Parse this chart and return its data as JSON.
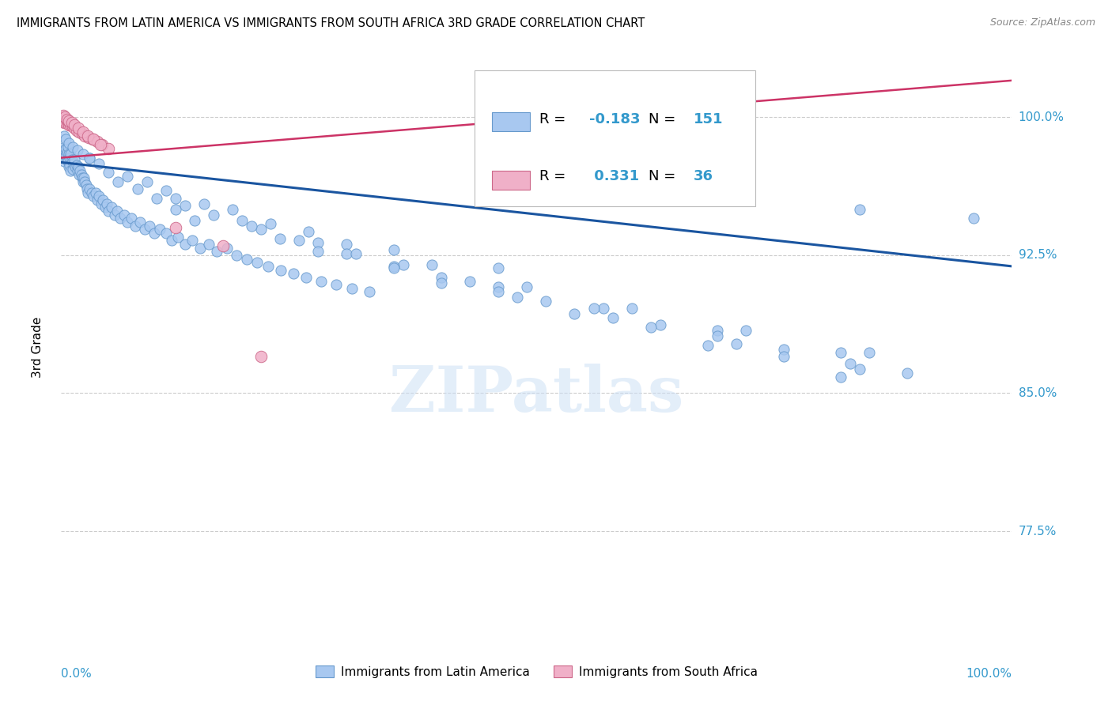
{
  "title": "IMMIGRANTS FROM LATIN AMERICA VS IMMIGRANTS FROM SOUTH AFRICA 3RD GRADE CORRELATION CHART",
  "source": "Source: ZipAtlas.com",
  "ylabel": "3rd Grade",
  "r_blue": -0.183,
  "n_blue": 151,
  "r_pink": 0.331,
  "n_pink": 36,
  "blue_face": "#a8c8f0",
  "pink_face": "#f0b0c8",
  "blue_edge": "#6699cc",
  "pink_edge": "#cc6688",
  "blue_line_color": "#1a55a0",
  "pink_line_color": "#cc3366",
  "label_color": "#3399cc",
  "grid_color": "#cccccc",
  "watermark_color": "#ddeeff",
  "y_tick_values": [
    0.775,
    0.85,
    0.925,
    1.0
  ],
  "y_tick_labels": [
    "77.5%",
    "85.0%",
    "92.5%",
    "100.0%"
  ],
  "xlim": [
    0.0,
    1.0
  ],
  "ylim": [
    0.715,
    1.035
  ],
  "blue_trend_x": [
    0.0,
    1.0
  ],
  "blue_trend_y": [
    0.9755,
    0.919
  ],
  "pink_trend_x": [
    0.0,
    1.0
  ],
  "pink_trend_y": [
    0.978,
    1.02
  ],
  "blue_x": [
    0.002,
    0.003,
    0.003,
    0.004,
    0.004,
    0.005,
    0.005,
    0.006,
    0.006,
    0.007,
    0.007,
    0.008,
    0.008,
    0.009,
    0.009,
    0.01,
    0.01,
    0.011,
    0.012,
    0.012,
    0.013,
    0.014,
    0.015,
    0.016,
    0.017,
    0.018,
    0.019,
    0.02,
    0.021,
    0.022,
    0.023,
    0.024,
    0.025,
    0.026,
    0.027,
    0.028,
    0.03,
    0.032,
    0.034,
    0.036,
    0.038,
    0.04,
    0.042,
    0.044,
    0.046,
    0.048,
    0.05,
    0.053,
    0.056,
    0.059,
    0.062,
    0.066,
    0.07,
    0.074,
    0.078,
    0.083,
    0.088,
    0.093,
    0.098,
    0.104,
    0.11,
    0.116,
    0.123,
    0.13,
    0.138,
    0.146,
    0.155,
    0.164,
    0.174,
    0.184,
    0.195,
    0.206,
    0.218,
    0.231,
    0.244,
    0.258,
    0.273,
    0.289,
    0.306,
    0.324,
    0.05,
    0.11,
    0.18,
    0.26,
    0.35,
    0.46,
    0.58,
    0.71,
    0.84,
    0.96,
    0.04,
    0.09,
    0.15,
    0.22,
    0.3,
    0.39,
    0.49,
    0.6,
    0.72,
    0.85,
    0.03,
    0.07,
    0.12,
    0.19,
    0.27,
    0.36,
    0.46,
    0.57,
    0.69,
    0.82,
    0.06,
    0.13,
    0.21,
    0.3,
    0.4,
    0.51,
    0.63,
    0.76,
    0.89,
    0.08,
    0.16,
    0.25,
    0.35,
    0.46,
    0.58,
    0.71,
    0.84,
    0.1,
    0.2,
    0.31,
    0.43,
    0.56,
    0.69,
    0.83,
    0.12,
    0.23,
    0.35,
    0.48,
    0.62,
    0.76,
    0.14,
    0.27,
    0.4,
    0.54,
    0.68,
    0.82,
    0.003,
    0.005,
    0.008,
    0.012,
    0.017,
    0.023,
    0.03
  ],
  "blue_y": [
    0.98,
    0.984,
    0.976,
    0.982,
    0.978,
    0.983,
    0.979,
    0.981,
    0.977,
    0.984,
    0.976,
    0.98,
    0.973,
    0.978,
    0.974,
    0.98,
    0.971,
    0.977,
    0.976,
    0.972,
    0.975,
    0.977,
    0.973,
    0.974,
    0.971,
    0.973,
    0.969,
    0.971,
    0.969,
    0.967,
    0.965,
    0.967,
    0.965,
    0.963,
    0.961,
    0.959,
    0.961,
    0.959,
    0.957,
    0.959,
    0.955,
    0.957,
    0.953,
    0.955,
    0.951,
    0.953,
    0.949,
    0.951,
    0.947,
    0.949,
    0.945,
    0.947,
    0.943,
    0.945,
    0.941,
    0.943,
    0.939,
    0.941,
    0.937,
    0.939,
    0.937,
    0.933,
    0.935,
    0.931,
    0.933,
    0.929,
    0.931,
    0.927,
    0.929,
    0.925,
    0.923,
    0.921,
    0.919,
    0.917,
    0.915,
    0.913,
    0.911,
    0.909,
    0.907,
    0.905,
    0.97,
    0.96,
    0.95,
    0.938,
    0.928,
    0.918,
    0.96,
    0.955,
    0.95,
    0.945,
    0.975,
    0.965,
    0.953,
    0.942,
    0.931,
    0.92,
    0.908,
    0.896,
    0.884,
    0.872,
    0.978,
    0.968,
    0.956,
    0.944,
    0.932,
    0.92,
    0.908,
    0.896,
    0.884,
    0.872,
    0.965,
    0.952,
    0.939,
    0.926,
    0.913,
    0.9,
    0.887,
    0.874,
    0.861,
    0.961,
    0.947,
    0.933,
    0.919,
    0.905,
    0.891,
    0.877,
    0.863,
    0.956,
    0.941,
    0.926,
    0.911,
    0.896,
    0.881,
    0.866,
    0.95,
    0.934,
    0.918,
    0.902,
    0.886,
    0.87,
    0.944,
    0.927,
    0.91,
    0.893,
    0.876,
    0.859,
    0.99,
    0.988,
    0.986,
    0.984,
    0.982,
    0.98,
    0.978
  ],
  "pink_x": [
    0.001,
    0.002,
    0.003,
    0.003,
    0.004,
    0.005,
    0.006,
    0.007,
    0.008,
    0.009,
    0.01,
    0.012,
    0.014,
    0.016,
    0.019,
    0.022,
    0.025,
    0.029,
    0.033,
    0.038,
    0.043,
    0.05,
    0.002,
    0.004,
    0.006,
    0.008,
    0.011,
    0.014,
    0.018,
    0.023,
    0.028,
    0.034,
    0.041,
    0.12,
    0.17,
    0.21
  ],
  "pink_y": [
    1.0,
    0.999,
    0.998,
    0.997,
    0.998,
    0.997,
    0.998,
    0.997,
    0.996,
    0.997,
    0.996,
    0.995,
    0.994,
    0.993,
    0.992,
    0.991,
    0.99,
    0.989,
    0.988,
    0.987,
    0.985,
    0.983,
    1.001,
    1.0,
    0.999,
    0.998,
    0.997,
    0.996,
    0.994,
    0.992,
    0.99,
    0.988,
    0.985,
    0.94,
    0.93,
    0.87
  ]
}
